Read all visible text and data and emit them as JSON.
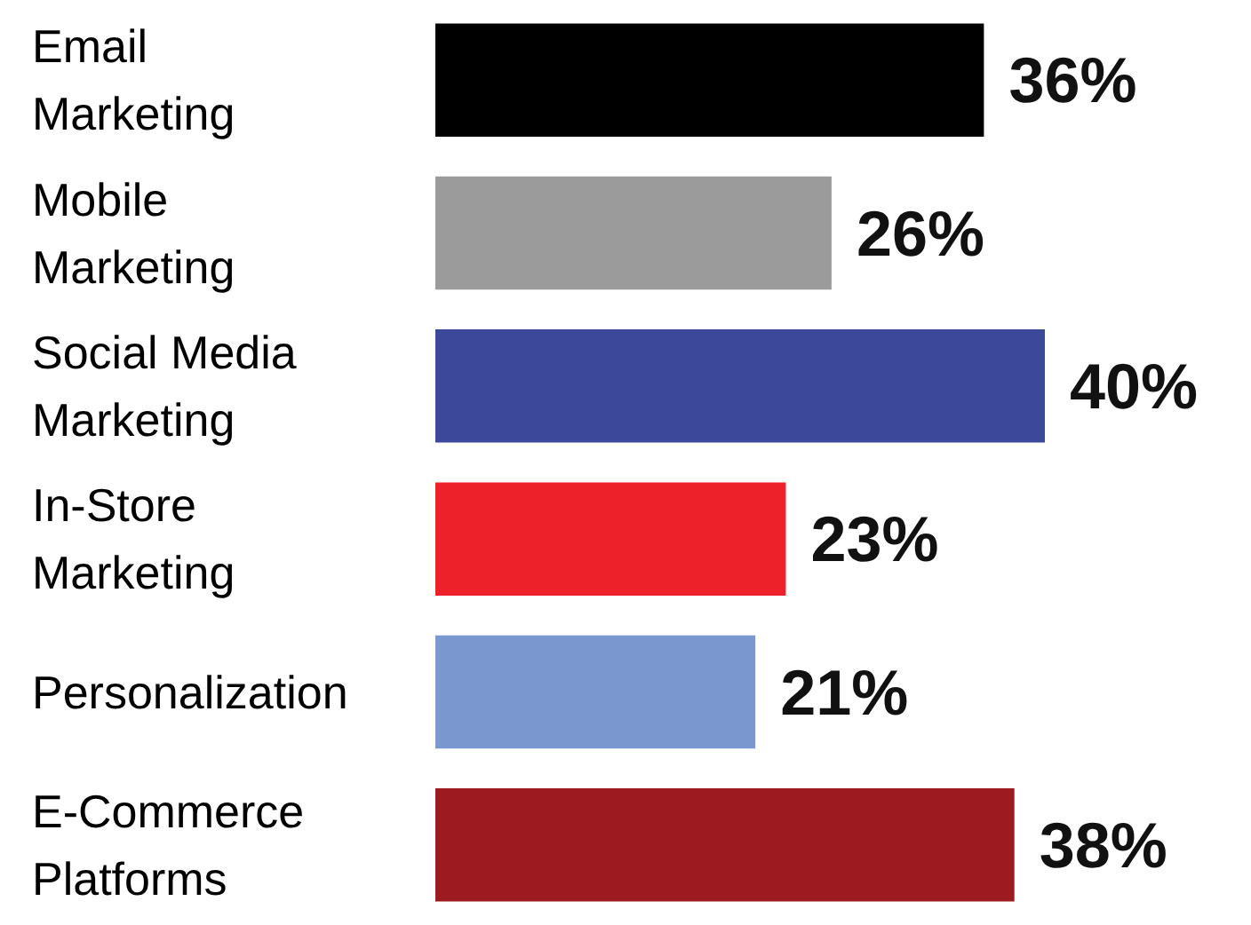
{
  "chart_data": {
    "type": "bar",
    "orientation": "horizontal",
    "categories": [
      "Email Marketing",
      "Mobile Marketing",
      "Social Media Marketing",
      "In-Store Marketing",
      "Personalization",
      "E-Commerce Platforms"
    ],
    "values": [
      36,
      26,
      40,
      23,
      21,
      38
    ],
    "colors": [
      "#000000",
      "#9b9b9b",
      "#3c4899",
      "#ec2129",
      "#7a97d0",
      "#9d1a20"
    ],
    "value_labels": [
      "36%",
      "26%",
      "40%",
      "23%",
      "21%",
      "38%"
    ],
    "tick_labels": "y"
  }
}
